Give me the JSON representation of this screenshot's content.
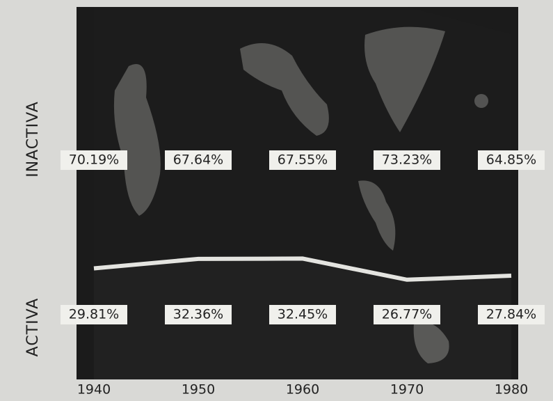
{
  "chart_data": {
    "type": "area",
    "categories": [
      "1940",
      "1950",
      "1960",
      "1970",
      "1980"
    ],
    "series": [
      {
        "name": "ACTIVA",
        "color": "#262626",
        "values": [
          29.81,
          32.36,
          32.45,
          26.77,
          27.84
        ],
        "value_labels": [
          "29.81%",
          "32.36%",
          "32.45%",
          "26.77%",
          "27.84%"
        ]
      },
      {
        "name": "INACTIVA",
        "color": "#1e1e1e",
        "values": [
          70.19,
          67.64,
          67.55,
          73.23,
          64.85
        ],
        "value_labels": [
          "70.19%",
          "67.64%",
          "67.55%",
          "73.23%",
          "64.85%"
        ]
      }
    ],
    "ylim": [
      0,
      100
    ]
  }
}
